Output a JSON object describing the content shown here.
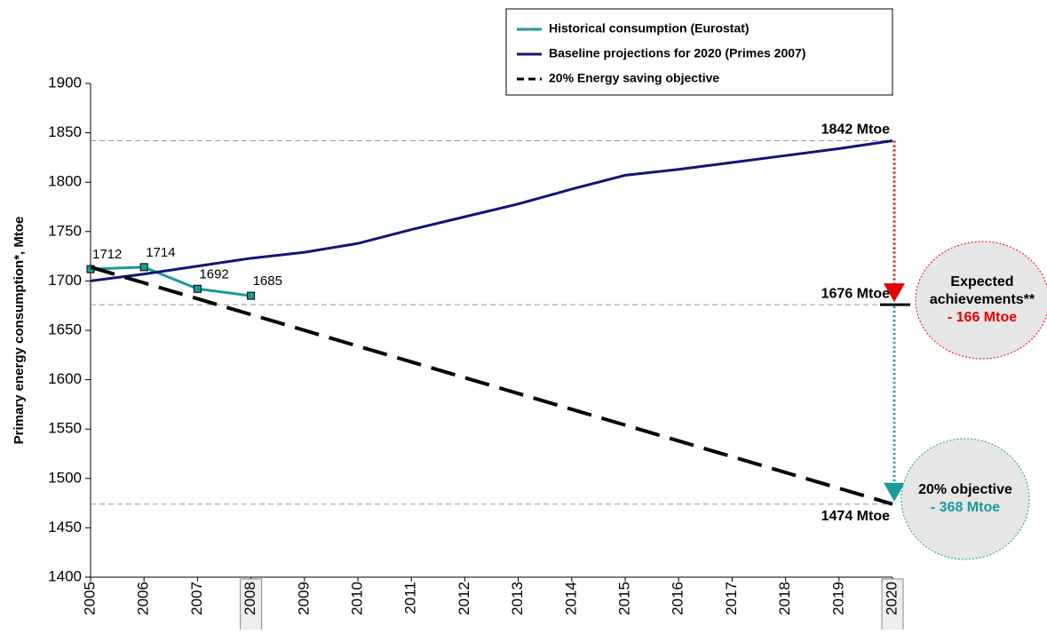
{
  "chart_data": {
    "type": "line",
    "y_label": "Primary energy consumption*, Mtoe",
    "categories": [
      "2005",
      "2006",
      "2007",
      "2008",
      "2009",
      "2010",
      "2011",
      "2012",
      "2013",
      "2014",
      "2015",
      "2016",
      "2017",
      "2018",
      "2019",
      "2020"
    ],
    "ylim": [
      1400,
      1900
    ],
    "yticks": [
      1400,
      1450,
      1500,
      1550,
      1600,
      1650,
      1700,
      1750,
      1800,
      1850,
      1900
    ],
    "series": [
      {
        "name": "Historical consumption (Eurostat)",
        "color": "#1a9a9a",
        "style": "solid",
        "markers": true,
        "values": [
          1712,
          1714,
          1692,
          1685,
          null,
          null,
          null,
          null,
          null,
          null,
          null,
          null,
          null,
          null,
          null,
          null
        ]
      },
      {
        "name": "Baseline projections for 2020 (Primes 2007)",
        "color": "#14147a",
        "style": "solid",
        "values": [
          1700,
          1707,
          1715,
          1723,
          1729,
          1738,
          1752,
          1765,
          1778,
          1793,
          1807,
          1813,
          1820,
          1827,
          1834,
          1842
        ]
      },
      {
        "name": "20% Energy saving objective",
        "color": "#000000",
        "style": "dashed",
        "values": [
          1714,
          1698,
          1682,
          1666,
          1650,
          1634,
          1618,
          1602,
          1586,
          1570,
          1554,
          1538,
          1522,
          1506,
          1490,
          1474
        ]
      }
    ],
    "reference_lines": [
      {
        "value": 1842,
        "label": "1842 Mtoe"
      },
      {
        "value": 1676,
        "label": "1676 Mtoe"
      },
      {
        "value": 1474,
        "label": "1474 Mtoe"
      }
    ],
    "callouts": [
      {
        "lines": [
          "Expected",
          "achievements**"
        ],
        "amount": "- 166 Mtoe",
        "color": "#e60000"
      },
      {
        "lines": [
          "20% objective"
        ],
        "amount": "- 368 Mtoe",
        "color": "#1a9a9a"
      }
    ],
    "legend_position": "top-right"
  }
}
